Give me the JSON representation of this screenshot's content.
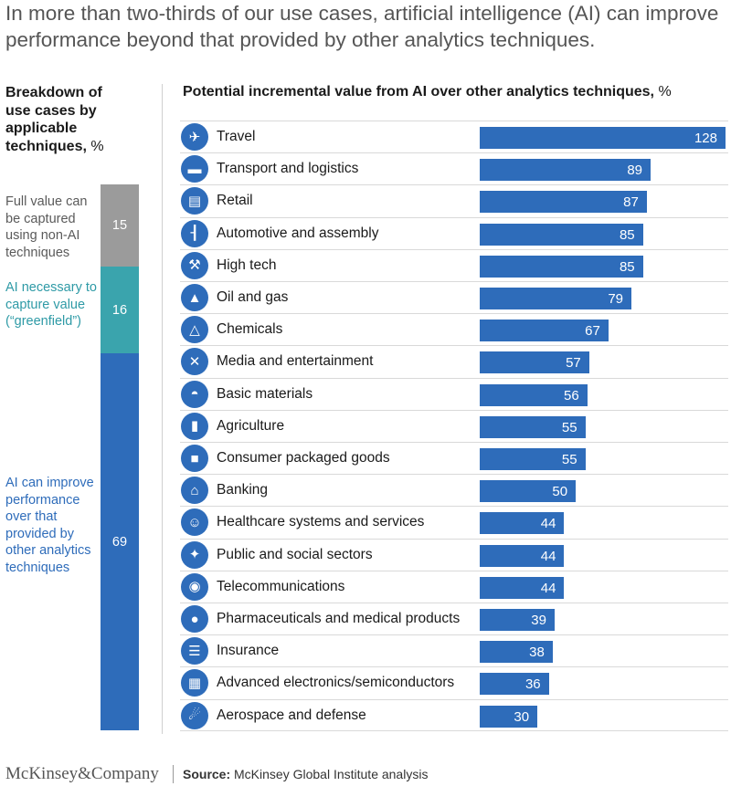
{
  "headline": "In more than two-thirds of our use cases, artificial intelligence (AI) can improve performance beyond that provided by other analytics techniques.",
  "left_panel": {
    "title": "Breakdown of use cases by applicable techniques,",
    "unit": "%",
    "segments": [
      {
        "label": "Full value can be captured using non-AI techniques",
        "value": 15,
        "color": "#9b9b9b"
      },
      {
        "label": "AI necessary to capture value (“greenfield”)",
        "value": 16,
        "color": "#3aa4ad"
      },
      {
        "label": "AI can improve performance over that provided by other analytics techniques",
        "value": 69,
        "color": "#2e6cba"
      }
    ]
  },
  "right_panel": {
    "title": "Potential incremental value from AI over other analytics techniques,",
    "unit": "%"
  },
  "chart_data": [
    {
      "type": "bar",
      "orientation": "vertical-stacked",
      "title": "Breakdown of use cases by applicable techniques, %",
      "categories": [
        "Full value can be captured using non-AI techniques",
        "AI necessary to capture value (“greenfield”)",
        "AI can improve performance over that provided by other analytics techniques"
      ],
      "values": [
        15,
        16,
        69
      ]
    },
    {
      "type": "bar",
      "orientation": "horizontal",
      "title": "Potential incremental value from AI over other analytics techniques, %",
      "categories": [
        "Travel",
        "Transport and logistics",
        "Retail",
        "Automotive and assembly",
        "High tech",
        "Oil and gas",
        "Chemicals",
        "Media and entertainment",
        "Basic materials",
        "Agriculture",
        "Consumer packaged goods",
        "Banking",
        "Healthcare systems and services",
        "Public and social sectors",
        "Telecommunications",
        "Pharmaceuticals and medical products",
        "Insurance",
        "Advanced electronics/semiconductors",
        "Aerospace and defense"
      ],
      "values": [
        128,
        89,
        87,
        85,
        85,
        79,
        67,
        57,
        56,
        55,
        55,
        50,
        44,
        44,
        44,
        39,
        38,
        36,
        30
      ],
      "icons": [
        "airplane-icon",
        "truck-icon",
        "shopping-cart-icon",
        "chassis-icon",
        "robot-arm-icon",
        "oil-pump-icon",
        "flask-icon",
        "directors-chair-icon",
        "hard-hat-icon",
        "cow-icon",
        "package-icon",
        "bank-icon",
        "doctor-icon",
        "handshake-icon",
        "antenna-icon",
        "pills-icon",
        "document-icon",
        "chip-icon",
        "satellite-icon"
      ],
      "xlim": [
        0,
        128
      ],
      "bar_color": "#2e6cba"
    }
  ],
  "footer": {
    "logo": "McKinsey&Company",
    "source_label": "Source:",
    "source_text": "McKinsey Global Institute analysis"
  }
}
